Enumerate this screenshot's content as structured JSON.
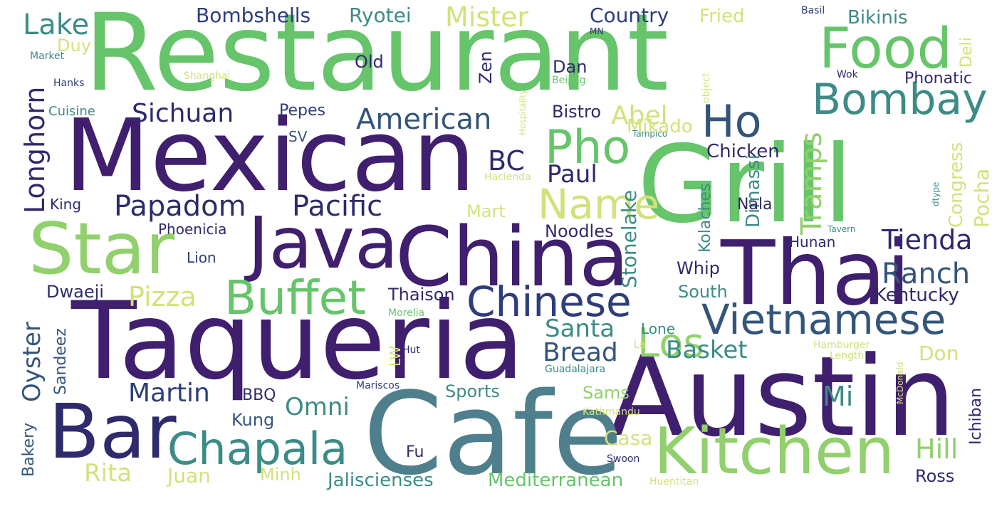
{
  "palette": {
    "dark_purple": "#3f1f6e",
    "indigo": "#2f2a6b",
    "navy": "#2e3d7a",
    "blue": "#34557a",
    "teal": "#4f7f8c",
    "teal_green": "#3c8b86",
    "green": "#66c46a",
    "light_green": "#91d06c",
    "yellow": "#d2e27a",
    "pale_yellow": "#e4ec96"
  },
  "words": [
    "Restaurant",
    "Mexican",
    "Grill",
    "Taqueria",
    "Austin",
    "Cafe",
    "China",
    "Thai",
    "Java",
    "Star",
    "Bar",
    "Kitchen",
    "Buffet",
    "Chinese",
    "Vietnamese",
    "Food",
    "Bombay",
    "Ho",
    "Pho",
    "Chapala",
    "Name",
    "Los",
    "Papadom",
    "Pacific",
    "Sichuan",
    "American",
    "Longhorn",
    "Lake",
    "Mister",
    "Bombshells",
    "Ryotei",
    "Country",
    "Fried",
    "Bikinis",
    "Basil",
    "Deli",
    "Phonatic",
    "Wok",
    "Dan",
    "Beijing",
    "Old",
    "Zen",
    "Duy",
    "Market",
    "Hanks",
    "Shanghai",
    "Hospitality",
    "object",
    "MN",
    "Cuisine",
    "Pepes",
    "Bistro",
    "Abel",
    "Tampico",
    "SV",
    "Mikado",
    "Chicken",
    "BC",
    "Paul",
    "Dimassi",
    "Tramps",
    "Congress",
    "Pocha",
    "dtype",
    "Hacienda",
    "King",
    "Mart",
    "Kolaches",
    "Stonelake",
    "Nala",
    "Noodles",
    "Phoenicia",
    "Tavern",
    "Hunan",
    "Tienda",
    "Lion",
    "Whip",
    "Ranch",
    "Pizza",
    "Dwaeji",
    "Thaison",
    "South",
    "Kentucky",
    "Morelia",
    "Santa",
    "Lone",
    "Oyster",
    "Sandeez",
    "Hut",
    "La",
    "Bread",
    "Basket",
    "Hamburger",
    "McDonald",
    "Length",
    "Don",
    "LW",
    "Guadalajara",
    "Mariscos",
    "Sports",
    "Ichiban",
    "Martin",
    "BBQ",
    "Omni",
    "Sams",
    "Mi",
    "Kung",
    "Kathmandu",
    "Bakery",
    "Fu",
    "Casa",
    "Hill",
    "Rita",
    "Juan",
    "Minh",
    "Jaliscienses",
    "Mediterranean",
    "Huentitan",
    "Swoon",
    "Ross"
  ]
}
